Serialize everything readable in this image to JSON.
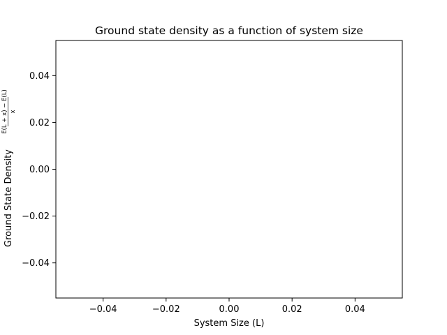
{
  "chart_data": {
    "type": "line",
    "title": "Ground state density as a function of system size",
    "xlabel": "System Size (L)",
    "ylabel": "Ground State Density",
    "ylabel_fraction": {
      "numerator": "E(L + x) − E(L)",
      "denominator": "x"
    },
    "xlim": [
      -0.055,
      0.055
    ],
    "ylim": [
      -0.055,
      0.055
    ],
    "xticks": [
      -0.04,
      -0.02,
      0.0,
      0.02,
      0.04
    ],
    "xtick_labels": [
      "−0.04",
      "−0.02",
      "0.00",
      "0.02",
      "0.04"
    ],
    "yticks": [
      -0.04,
      -0.02,
      0.0,
      0.02,
      0.04
    ],
    "ytick_labels": [
      "−0.04",
      "−0.02",
      "0.00",
      "0.02",
      "0.04"
    ],
    "grid": false,
    "series": []
  }
}
